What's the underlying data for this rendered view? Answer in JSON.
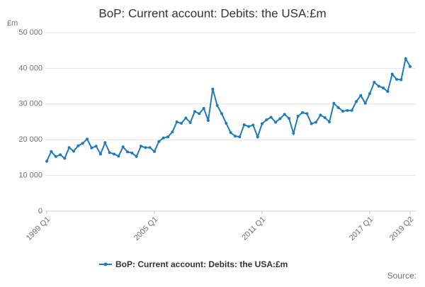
{
  "chart_data": {
    "type": "line",
    "title": "BoP: Current account: Debits: the USA:£m",
    "y_label": "£m",
    "source": "Source:",
    "categories": [
      "1999 Q1",
      null,
      null,
      null,
      null,
      null,
      null,
      null,
      null,
      null,
      null,
      null,
      null,
      null,
      null,
      null,
      null,
      null,
      null,
      null,
      null,
      null,
      null,
      null,
      "2005 Q1",
      null,
      null,
      null,
      null,
      null,
      null,
      null,
      null,
      null,
      null,
      null,
      null,
      null,
      null,
      null,
      null,
      null,
      null,
      null,
      null,
      null,
      null,
      null,
      "2011 Q1",
      null,
      null,
      null,
      null,
      null,
      null,
      null,
      null,
      null,
      null,
      null,
      null,
      null,
      null,
      null,
      null,
      null,
      null,
      null,
      null,
      null,
      null,
      null,
      "2017 Q1",
      null,
      null,
      null,
      null,
      null,
      null,
      null,
      null,
      "2019 Q2"
    ],
    "series": [
      {
        "name": "BoP: Current account: Debits: the USA:£m",
        "color": "#1f7ab8",
        "values": [
          14000,
          16700,
          15300,
          15800,
          14800,
          17800,
          16800,
          18300,
          19000,
          20200,
          17700,
          18200,
          16000,
          19200,
          16400,
          16000,
          15400,
          18000,
          16600,
          16300,
          15300,
          18200,
          17800,
          17800,
          16700,
          19500,
          20500,
          20800,
          22200,
          25000,
          24600,
          26100,
          24800,
          27900,
          27300,
          28800,
          25400,
          34200,
          29600,
          27300,
          24600,
          22000,
          21000,
          20800,
          24200,
          23700,
          24100,
          20800,
          24500,
          25600,
          26300,
          24900,
          25900,
          27100,
          26000,
          21800,
          26600,
          27600,
          27300,
          24500,
          24900,
          26900,
          26200,
          25000,
          30200,
          29000,
          28000,
          28200,
          28200,
          30700,
          32400,
          30200,
          32900,
          36100,
          35000,
          34500,
          33500,
          38400,
          36900,
          36800,
          42700,
          40500
        ]
      }
    ],
    "ylim": [
      0,
      50000
    ],
    "yticks": [
      0,
      {
        "value": 10000,
        "label": "10 000"
      },
      {
        "value": 20000,
        "label": "20 000"
      },
      {
        "value": 30000,
        "label": "30 000"
      },
      {
        "value": 40000,
        "label": "40 000"
      },
      {
        "value": 50000,
        "label": "50 000"
      }
    ],
    "grid": true
  }
}
